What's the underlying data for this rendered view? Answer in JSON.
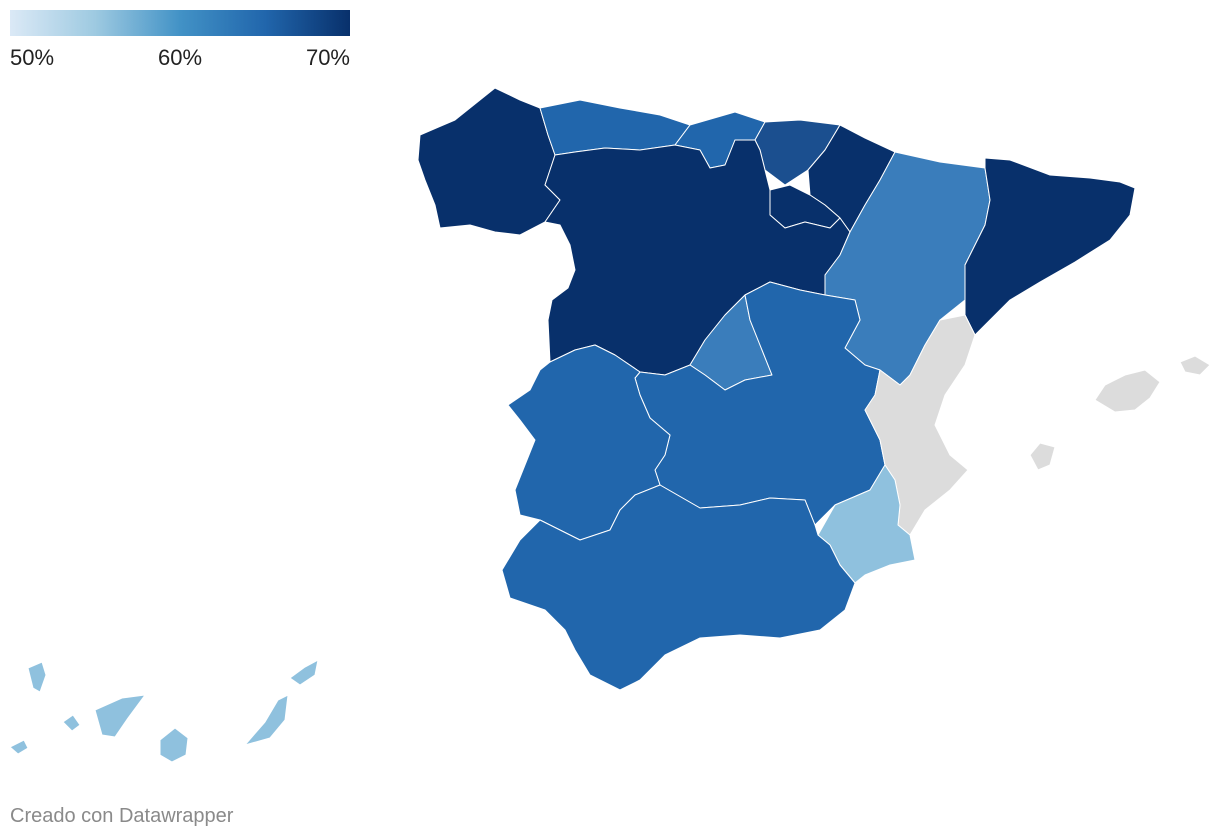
{
  "legend": {
    "min_label": "50%",
    "mid_label": "60%",
    "max_label": "70%",
    "gradient": [
      "#dbe9f6",
      "#9ecae1",
      "#4292c6",
      "#2166ac",
      "#08306b"
    ]
  },
  "no_data_color": "#dcdcdc",
  "credit": "Creado con Datawrapper",
  "regions": [
    {
      "id": "galicia",
      "tier": 5
    },
    {
      "id": "asturias",
      "tier": 3
    },
    {
      "id": "cantabria",
      "tier": 3
    },
    {
      "id": "pais-vasco",
      "tier": 4
    },
    {
      "id": "navarra",
      "tier": 5
    },
    {
      "id": "la-rioja",
      "tier": 5
    },
    {
      "id": "castilla-y-leon",
      "tier": 5
    },
    {
      "id": "aragon",
      "tier": 2
    },
    {
      "id": "cataluna",
      "tier": 5
    },
    {
      "id": "madrid",
      "tier": 2
    },
    {
      "id": "castilla-la-mancha",
      "tier": 3
    },
    {
      "id": "extremadura",
      "tier": 3
    },
    {
      "id": "comunidad-valenciana",
      "tier": 0
    },
    {
      "id": "murcia",
      "tier": 1
    },
    {
      "id": "andalucia",
      "tier": 3
    },
    {
      "id": "baleares",
      "tier": 0
    },
    {
      "id": "canarias",
      "tier": 1
    }
  ]
}
